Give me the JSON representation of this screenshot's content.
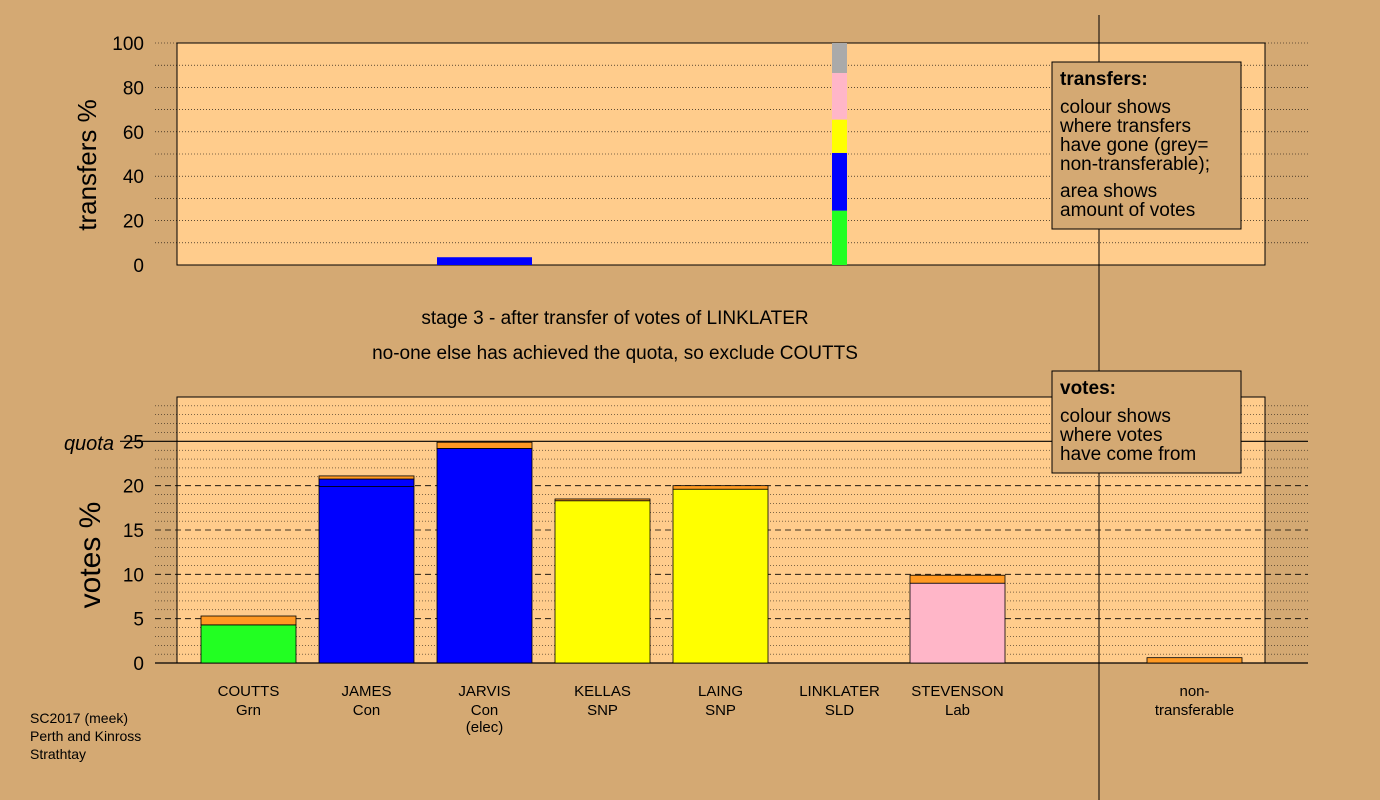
{
  "chart_data": [
    {
      "type": "bar",
      "title": "",
      "ylabel": "transfers %",
      "ylim": [
        0,
        100
      ],
      "yticks": [
        0,
        20,
        40,
        60,
        80,
        100
      ],
      "categories": [
        "COUTTS",
        "JAMES",
        "JARVIS",
        "KELLAS",
        "LAING",
        "LINKLATER",
        "STEVENSON",
        "non-transferable"
      ],
      "bars": [
        {
          "category": "JARVIS",
          "segments": [
            {
              "value": 3.5,
              "color": "#0000ff"
            }
          ]
        },
        {
          "category": "LINKLATER",
          "segments": [
            {
              "value": 24.5,
              "color": "#22ff22"
            },
            {
              "value": 26,
              "color": "#0000ff"
            },
            {
              "value": 15,
              "color": "#ffff00"
            },
            {
              "value": 21,
              "color": "#ffb6c8"
            },
            {
              "value": 13.5,
              "color": "#aaaaaa"
            }
          ]
        }
      ],
      "legend": {
        "title": "transfers:",
        "lines_a": [
          "colour shows",
          "where transfers",
          "have gone (grey=",
          "non-transferable);"
        ],
        "lines_b": [
          "area shows",
          "amount of votes"
        ]
      }
    },
    {
      "type": "bar",
      "title": "",
      "ylabel": "votes %",
      "ylim": [
        0,
        30
      ],
      "yticks": [
        0,
        5,
        10,
        15,
        20,
        25
      ],
      "quota": 25,
      "quota_label": "quota",
      "bars": [
        {
          "category": "COUTTS",
          "party": "Grn",
          "segments": [
            {
              "value": 4.3,
              "color": "#22ff22"
            },
            {
              "value": 1.0,
              "color": "#ff9922"
            }
          ]
        },
        {
          "category": "JAMES",
          "party": "Con",
          "segments": [
            {
              "value": 19.9,
              "color": "#0000ff"
            },
            {
              "value": 0.85,
              "color": "#0000ff"
            },
            {
              "value": 0.35,
              "color": "#ff9922"
            }
          ]
        },
        {
          "category": "JARVIS",
          "party": "Con",
          "note": "(elec)",
          "segments": [
            {
              "value": 24.2,
              "color": "#0000ff"
            },
            {
              "value": 0.7,
              "color": "#ff9922"
            }
          ]
        },
        {
          "category": "KELLAS",
          "party": "SNP",
          "segments": [
            {
              "value": 18.3,
              "color": "#ffff00"
            },
            {
              "value": 0.2,
              "color": "#ff9922"
            }
          ]
        },
        {
          "category": "LAING",
          "party": "SNP",
          "segments": [
            {
              "value": 19.6,
              "color": "#ffff00"
            },
            {
              "value": 0.4,
              "color": "#ff9922"
            }
          ]
        },
        {
          "category": "LINKLATER",
          "party": "SLD",
          "segments": []
        },
        {
          "category": "STEVENSON",
          "party": "Lab",
          "segments": [
            {
              "value": 9.0,
              "color": "#ffb6c8"
            },
            {
              "value": 0.9,
              "color": "#ff9922"
            }
          ]
        },
        {
          "category": "non-",
          "party": "transferable",
          "segments": [
            {
              "value": 0.6,
              "color": "#ff9922"
            }
          ]
        }
      ],
      "legend": {
        "title": "votes:",
        "lines": [
          "colour shows",
          "where votes",
          "have come from"
        ]
      }
    }
  ],
  "stage_text": "stage 3 - after transfer of votes of LINKLATER",
  "exclude_text": "no-one else has achieved the quota, so exclude COUTTS",
  "footer": {
    "line1": "SC2017 (meek)",
    "line2": "Perth and Kinross",
    "line3": "Strathtay"
  },
  "colors": {
    "background": "#d4a973",
    "plot_background": "#ffcc8c"
  }
}
